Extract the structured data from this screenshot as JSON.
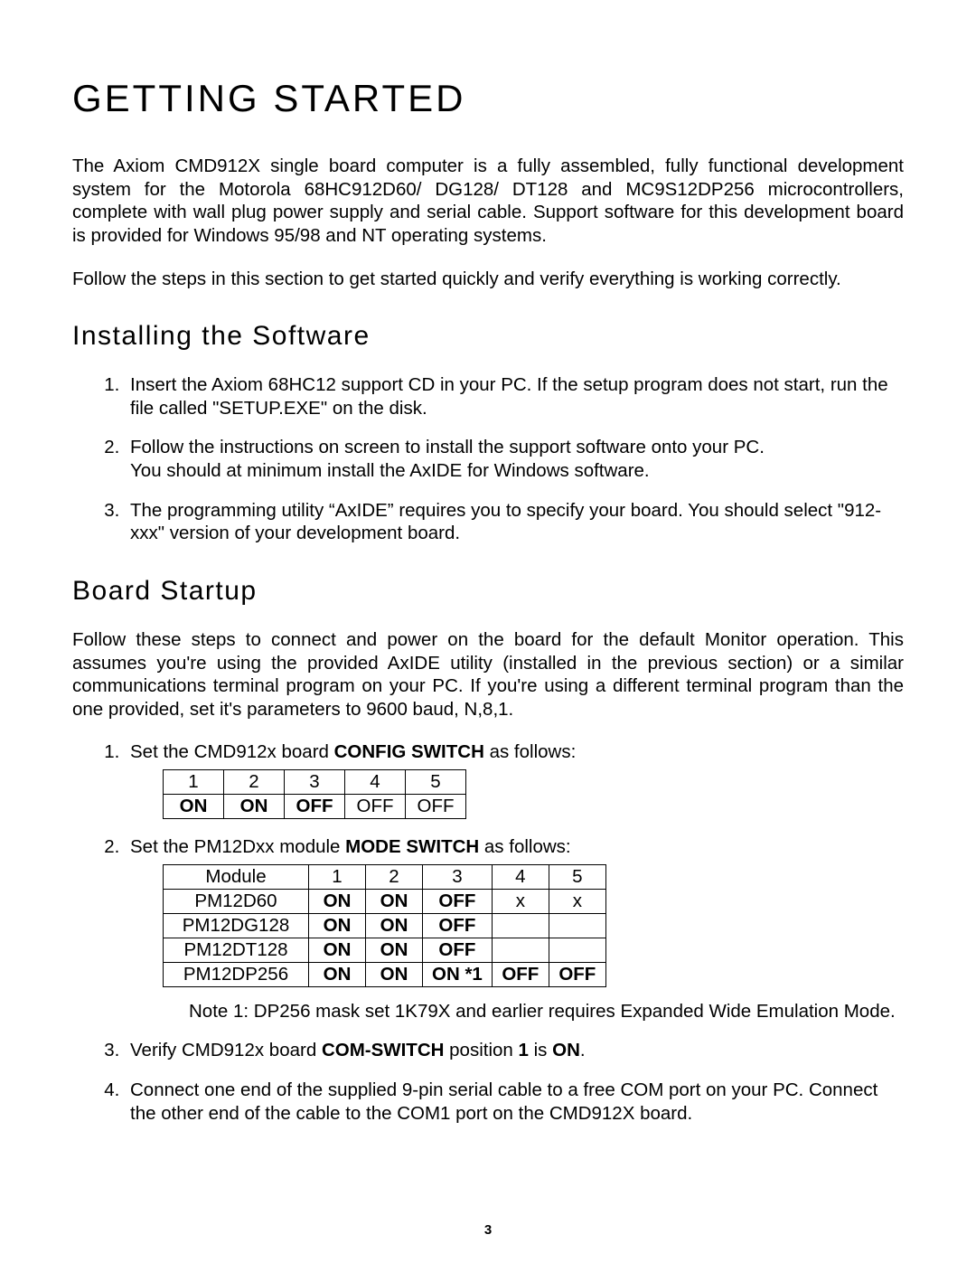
{
  "title": "GETTING STARTED",
  "intro1": "The Axiom CMD912X single board computer is a fully assembled, fully functional development system for the Motorola 68HC912D60/ DG128/ DT128 and MC9S12DP256 microcontrollers, complete with wall plug power supply and serial cable.  Support software for this development board is provided for Windows 95/98 and NT operating systems.",
  "intro2": "Follow the steps in this section to get started quickly and verify everything is working correctly.",
  "install": {
    "heading": "Installing the Software",
    "items": [
      "Insert the Axiom 68HC12 support CD in your PC.  If the setup program does not start, run the file called \"SETUP.EXE\" on the disk.",
      "Follow the instructions on screen to install the support software onto your PC.\nYou should at minimum install the AxIDE for Windows software.",
      "The programming utility “AxIDE” requires you to specify your board.  You should select \"912-xxx\" version of your development board."
    ]
  },
  "startup": {
    "heading": "Board Startup",
    "intro": "Follow these steps to connect and power on the board for the default Monitor operation.  This assumes you're using the provided AxIDE utility (installed in the previous section) or a similar communications terminal program on your PC.  If you're using a different terminal program than the one provided, set it's parameters to 9600 baud, N,8,1.",
    "step1_pre": "Set the CMD912x board ",
    "step1_bold": "CONFIG SWITCH",
    "step1_post": " as follows:",
    "config_table": {
      "headers": [
        "1",
        "2",
        "3",
        "4",
        "5"
      ],
      "row": [
        {
          "text": "ON",
          "bold": true
        },
        {
          "text": "ON",
          "bold": true
        },
        {
          "text": "OFF",
          "bold": true
        },
        {
          "text": "OFF",
          "bold": false
        },
        {
          "text": "OFF",
          "bold": false
        }
      ]
    },
    "step2_pre": "Set the PM12Dxx module ",
    "step2_bold": "MODE SWITCH",
    "step2_post": " as follows:",
    "mode_table": {
      "headers": [
        "Module",
        "1",
        "2",
        "3",
        "4",
        "5"
      ],
      "rows": [
        {
          "module": "PM12D60",
          "cells": [
            {
              "t": "ON",
              "b": true
            },
            {
              "t": "ON",
              "b": true
            },
            {
              "t": "OFF",
              "b": true
            },
            {
              "t": "x",
              "b": false
            },
            {
              "t": "x",
              "b": false
            }
          ]
        },
        {
          "module": "PM12DG128",
          "cells": [
            {
              "t": "ON",
              "b": true
            },
            {
              "t": "ON",
              "b": true
            },
            {
              "t": "OFF",
              "b": true
            },
            {
              "t": "",
              "b": false
            },
            {
              "t": "",
              "b": false
            }
          ]
        },
        {
          "module": "PM12DT128",
          "cells": [
            {
              "t": "ON",
              "b": true
            },
            {
              "t": "ON",
              "b": true
            },
            {
              "t": "OFF",
              "b": true
            },
            {
              "t": "",
              "b": false
            },
            {
              "t": "",
              "b": false
            }
          ]
        },
        {
          "module": "PM12DP256",
          "cells": [
            {
              "t": "ON",
              "b": true
            },
            {
              "t": "ON",
              "b": true
            },
            {
              "t": "ON *1",
              "b": true
            },
            {
              "t": "OFF",
              "b": true
            },
            {
              "t": "OFF",
              "b": true
            }
          ]
        }
      ]
    },
    "note1": "Note 1: DP256 mask set 1K79X and earlier requires Expanded Wide Emulation Mode.",
    "step3_pre": "Verify CMD912x board ",
    "step3_b1": "COM-SWITCH",
    "step3_mid": " position ",
    "step3_b2": "1",
    "step3_mid2": " is ",
    "step3_b3": "ON",
    "step3_post": ".",
    "step4": "Connect one end of the supplied 9-pin serial cable to a free COM port on your PC. Connect the other end of the cable to the COM1 port on the CMD912X board."
  },
  "page_number": "3"
}
